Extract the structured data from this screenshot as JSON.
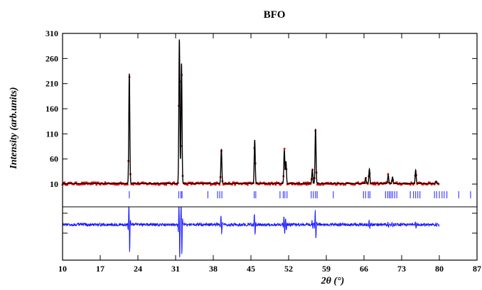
{
  "chart_data": {
    "type": "scatter",
    "title": "BFO",
    "xlabel": "2θ (°)",
    "ylabel": "Intensity (arb.units)",
    "xlim": [
      10,
      87
    ],
    "ylim": [
      10,
      310
    ],
    "x_ticks": [
      10,
      17,
      24,
      31,
      38,
      45,
      52,
      59,
      66,
      73,
      80,
      87
    ],
    "x_tick_labels": [
      "10",
      "17",
      "24",
      "31",
      "38",
      "45",
      "52",
      "59",
      "66",
      "73",
      "80",
      "87"
    ],
    "y_ticks": [
      10,
      60,
      110,
      160,
      210,
      260,
      310
    ],
    "y_tick_labels": [
      "10",
      "60",
      "110",
      "160",
      "210",
      "260",
      "310"
    ],
    "grid": false,
    "legend": "none",
    "colors": {
      "observed": "#e00000",
      "calculated": "#000000",
      "bragg": "#3333ff",
      "difference": "#1a1aff"
    },
    "background_level": 11,
    "x_range_measured": [
      10,
      80
    ],
    "peaks": [
      {
        "x": 22.4,
        "y": 230
      },
      {
        "x": 31.7,
        "y": 298
      },
      {
        "x": 32.1,
        "y": 250
      },
      {
        "x": 39.5,
        "y": 80
      },
      {
        "x": 45.7,
        "y": 98
      },
      {
        "x": 51.2,
        "y": 78
      },
      {
        "x": 51.5,
        "y": 55
      },
      {
        "x": 56.4,
        "y": 38
      },
      {
        "x": 57.0,
        "y": 120
      },
      {
        "x": 66.3,
        "y": 22
      },
      {
        "x": 67.0,
        "y": 40
      },
      {
        "x": 70.5,
        "y": 28
      },
      {
        "x": 71.3,
        "y": 24
      },
      {
        "x": 75.6,
        "y": 38
      },
      {
        "x": 79.4,
        "y": 16
      }
    ],
    "bragg_positions": [
      22.4,
      31.6,
      32.0,
      32.2,
      37.0,
      38.8,
      39.2,
      39.6,
      45.6,
      45.9,
      50.4,
      51.0,
      51.3,
      51.7,
      56.2,
      56.6,
      57.0,
      57.3,
      60.3,
      65.9,
      66.3,
      66.8,
      67.1,
      70.0,
      70.4,
      70.7,
      71.0,
      71.3,
      71.7,
      72.1,
      74.6,
      75.2,
      75.6,
      76.0,
      76.4,
      79.1,
      79.5,
      80.0,
      80.5,
      80.9,
      81.4,
      83.6,
      85.8
    ]
  }
}
